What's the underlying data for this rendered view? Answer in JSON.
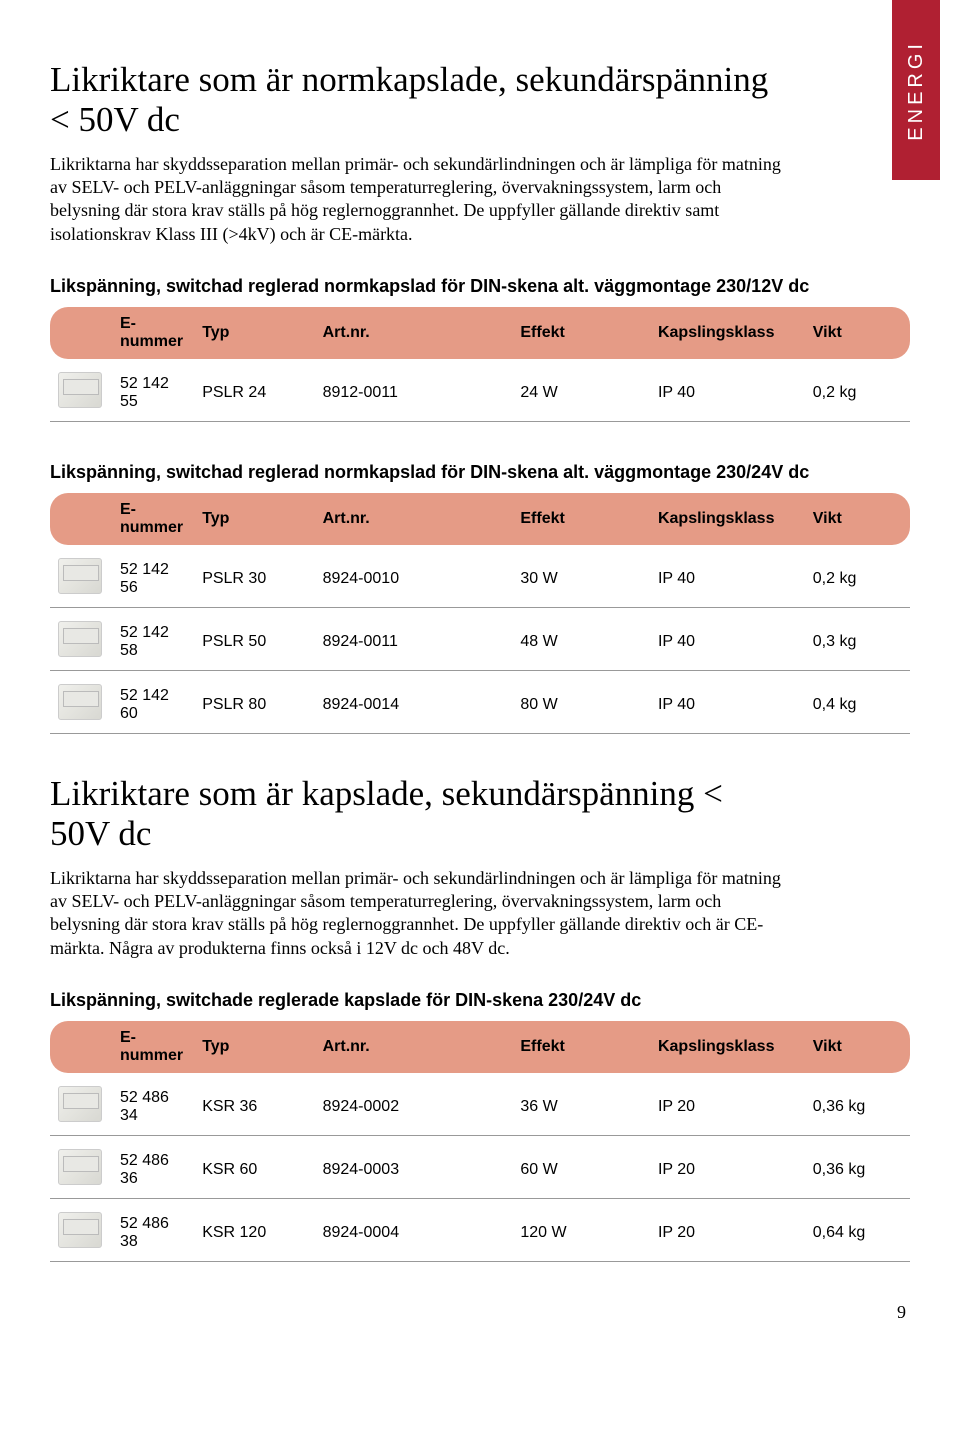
{
  "side_tab": "ENERGI",
  "page_number": "9",
  "header_bg": "#e59b86",
  "tab_bg": "#b02032",
  "columns": [
    "E-nummer",
    "Typ",
    "Art.nr.",
    "Effekt",
    "Kapslingsklass",
    "Vikt"
  ],
  "section1": {
    "title": "Likriktare som är normkapslade, sekundärspänning < 50V dc",
    "desc": "Likriktarna har skyddsseparation mellan primär- och sekundärlindningen och är lämpliga för matning av SELV- och PELV-anläggningar såsom temperaturreglering, övervakningssystem, larm och belysning där stora krav ställs på hög reglernoggrannhet. De uppfyller gällande direktiv samt isolationskrav Klass III (>4kV) och är CE-märkta."
  },
  "table1": {
    "title": "Likspänning, switchad reglerad normkapslad för DIN-skena alt. väggmontage 230/12V dc",
    "rows": [
      [
        "52 142 55",
        "PSLR 24",
        "8912-0011",
        "24 W",
        "IP 40",
        "0,2 kg"
      ]
    ]
  },
  "table2": {
    "title": "Likspänning, switchad reglerad normkapslad för DIN-skena alt. väggmontage 230/24V dc",
    "rows": [
      [
        "52 142 56",
        "PSLR 30",
        "8924-0010",
        "30 W",
        "IP 40",
        "0,2 kg"
      ],
      [
        "52 142 58",
        "PSLR 50",
        "8924-0011",
        "48 W",
        "IP 40",
        "0,3 kg"
      ],
      [
        "52 142 60",
        "PSLR 80",
        "8924-0014",
        "80 W",
        "IP 40",
        "0,4 kg"
      ]
    ]
  },
  "section2": {
    "title": "Likriktare som är kapslade, sekundärspänning < 50V dc",
    "desc": "Likriktarna har skyddsseparation mellan primär- och sekundärlindningen och är lämpliga för matning av SELV- och PELV-anläggningar såsom temperaturreglering, övervakningssystem, larm och belysning där stora krav ställs på hög reglernoggrannhet. De uppfyller gällande direktiv och är CE-märkta. Några av produkterna finns också i 12V dc och 48V dc."
  },
  "table3": {
    "title": "Likspänning, switchade reglerade kapslade för DIN-skena 230/24V dc",
    "rows": [
      [
        "52 486 34",
        "KSR 36",
        "8924-0002",
        "36  W",
        "IP 20",
        "0,36 kg"
      ],
      [
        "52 486 36",
        "KSR 60",
        "8924-0003",
        "60  W",
        "IP 20",
        "0,36 kg"
      ],
      [
        "52 486 38",
        "KSR 120",
        "8924-0004",
        "120 W",
        "IP 20",
        "0,64 kg"
      ]
    ]
  }
}
